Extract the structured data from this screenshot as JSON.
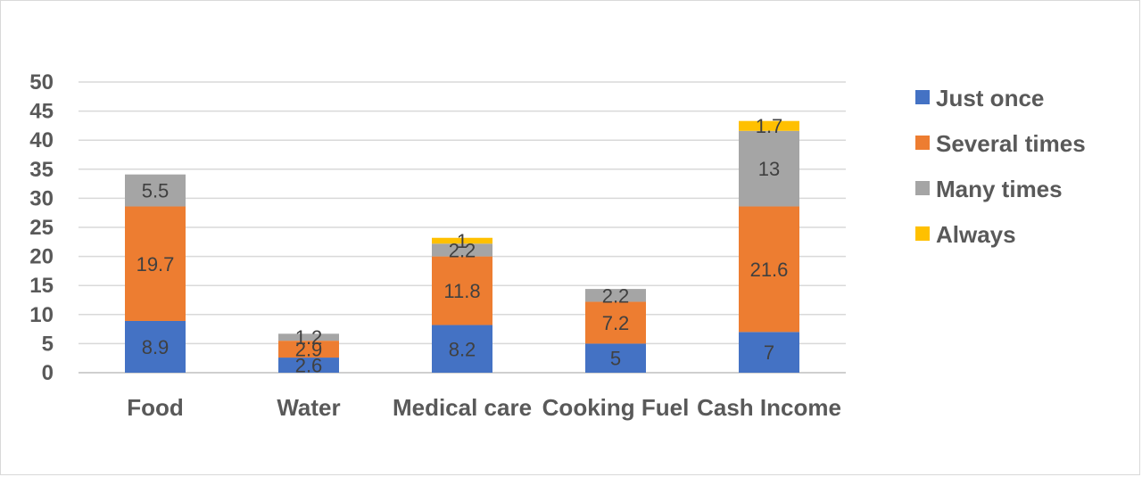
{
  "chart_data": {
    "type": "bar",
    "stacked": true,
    "title": "",
    "xlabel": "",
    "ylabel": "",
    "ylim": [
      0,
      50
    ],
    "yticks": [
      0,
      5,
      10,
      15,
      20,
      25,
      30,
      35,
      40,
      45,
      50
    ],
    "grid": true,
    "legend_position": "right",
    "categories": [
      "Food",
      "Water",
      "Medical care",
      "Cooking Fuel",
      "Cash Income"
    ],
    "series": [
      {
        "name": "Just once",
        "color": "#4472C4",
        "values": [
          8.9,
          2.6,
          8.2,
          5,
          7
        ]
      },
      {
        "name": "Several times",
        "color": "#ED7D31",
        "values": [
          19.7,
          2.9,
          11.8,
          7.2,
          21.6
        ]
      },
      {
        "name": "Many times",
        "color": "#A5A5A5",
        "values": [
          5.5,
          1.2,
          2.2,
          2.2,
          13
        ]
      },
      {
        "name": "Always",
        "color": "#FFC000",
        "values": [
          null,
          null,
          1,
          null,
          1.7
        ]
      }
    ]
  }
}
